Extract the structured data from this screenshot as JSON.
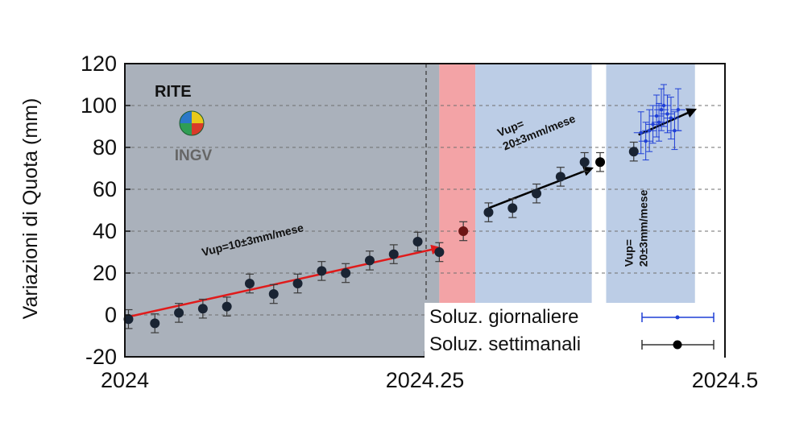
{
  "chart_data": {
    "type": "scatter",
    "ylabel": "Variazioni di Quota (mm)",
    "xlabel": "",
    "xlim": [
      2024.0,
      2024.5
    ],
    "ylim": [
      -20,
      120
    ],
    "x_ticks": [
      2024.0,
      2024.25,
      2024.5
    ],
    "x_tick_labels": [
      "2024",
      "2024.25",
      "2024.5"
    ],
    "y_ticks": [
      -20,
      0,
      20,
      40,
      60,
      80,
      100,
      120
    ],
    "y_tick_labels": [
      "-20",
      "0",
      "20",
      "40",
      "60",
      "80",
      "100",
      "120"
    ],
    "site": "RITE",
    "logo_text": "INGV",
    "shaded_periods": [
      {
        "from": 2024.0,
        "to": 2024.262,
        "color": "#aab1bb"
      },
      {
        "from": 2024.262,
        "to": 2024.292,
        "color": "#f3a3a6"
      },
      {
        "from": 2024.292,
        "to": 2024.389,
        "color": "#bccde6"
      },
      {
        "from": 2024.401,
        "to": 2024.475,
        "color": "#bccde6"
      }
    ],
    "vertical_marker_x": 2024.251,
    "series": [
      {
        "name": "Soluz. settimanali",
        "color": "#1a2433",
        "error": 4.5,
        "points": [
          {
            "x": 2024.003,
            "y": -2,
            "color": "#1a2433"
          },
          {
            "x": 2024.025,
            "y": -4,
            "color": "#1a2433"
          },
          {
            "x": 2024.045,
            "y": 1,
            "color": "#1a2433"
          },
          {
            "x": 2024.065,
            "y": 3,
            "color": "#1a2433"
          },
          {
            "x": 2024.085,
            "y": 4,
            "color": "#1a2433"
          },
          {
            "x": 2024.104,
            "y": 15,
            "color": "#1a2433"
          },
          {
            "x": 2024.124,
            "y": 10,
            "color": "#1a2433"
          },
          {
            "x": 2024.144,
            "y": 15,
            "color": "#1a2433"
          },
          {
            "x": 2024.164,
            "y": 21,
            "color": "#1a2433"
          },
          {
            "x": 2024.184,
            "y": 20,
            "color": "#1a2433"
          },
          {
            "x": 2024.204,
            "y": 26,
            "color": "#1a2433"
          },
          {
            "x": 2024.224,
            "y": 29,
            "color": "#1a2433"
          },
          {
            "x": 2024.244,
            "y": 35,
            "color": "#1a2433"
          },
          {
            "x": 2024.262,
            "y": 30,
            "color": "#1a2433"
          },
          {
            "x": 2024.282,
            "y": 40,
            "color": "#6e1515"
          },
          {
            "x": 2024.303,
            "y": 49,
            "color": "#1a2433"
          },
          {
            "x": 2024.323,
            "y": 51,
            "color": "#1a2433"
          },
          {
            "x": 2024.343,
            "y": 58,
            "color": "#1a2433"
          },
          {
            "x": 2024.363,
            "y": 66,
            "color": "#1a2433"
          },
          {
            "x": 2024.383,
            "y": 73,
            "color": "#1a2433"
          },
          {
            "x": 2024.396,
            "y": 73,
            "color": "#000000"
          },
          {
            "x": 2024.424,
            "y": 78,
            "color": "#1a2433"
          }
        ]
      },
      {
        "name": "Soluz. giornaliere",
        "color": "#1f3fd6",
        "points": [
          {
            "x": 2024.43,
            "y": 87,
            "xerr": 0.006,
            "yerr": 10
          },
          {
            "x": 2024.434,
            "y": 83,
            "xerr": 0.006,
            "yerr": 9
          },
          {
            "x": 2024.437,
            "y": 88,
            "xerr": 0.006,
            "yerr": 10
          },
          {
            "x": 2024.44,
            "y": 91,
            "xerr": 0.006,
            "yerr": 9
          },
          {
            "x": 2024.443,
            "y": 95,
            "xerr": 0.006,
            "yerr": 10
          },
          {
            "x": 2024.445,
            "y": 92,
            "xerr": 0.006,
            "yerr": 9
          },
          {
            "x": 2024.447,
            "y": 98,
            "xerr": 0.006,
            "yerr": 10
          },
          {
            "x": 2024.449,
            "y": 100,
            "xerr": 0.006,
            "yerr": 10
          },
          {
            "x": 2024.452,
            "y": 96,
            "xerr": 0.006,
            "yerr": 9
          },
          {
            "x": 2024.455,
            "y": 94,
            "xerr": 0.006,
            "yerr": 10
          },
          {
            "x": 2024.458,
            "y": 88,
            "xerr": 0.006,
            "yerr": 9
          },
          {
            "x": 2024.461,
            "y": 98,
            "xerr": 0.006,
            "yerr": 10
          }
        ]
      }
    ],
    "trend_arrows": [
      {
        "label": "Vup=10±3mm/mese",
        "from": [
          2024.002,
          -1
        ],
        "to": [
          2024.262,
          32
        ],
        "color": "#e01b1b",
        "label_at": [
          2024.065,
          28
        ],
        "rotate": -14
      },
      {
        "label": "Vup=",
        "label2": "20±3mm/mese",
        "from": [
          2024.303,
          51
        ],
        "to": [
          2024.389,
          70
        ],
        "color": "#000000",
        "label_at": [
          2024.312,
          85
        ],
        "rotate": -22
      },
      {
        "label": "Vup=",
        "label2": "20±3mm/mese",
        "from": [
          2024.428,
          86
        ],
        "to": [
          2024.475,
          98
        ],
        "color": "#000000",
        "label_at": [
          2024.423,
          23
        ],
        "rotate": -90
      }
    ],
    "legend": {
      "position": "bottom-right",
      "entries": [
        {
          "label": "Soluz. giornaliere",
          "color": "#1f3fd6"
        },
        {
          "label": "Soluz. settimanali",
          "color": "#000000"
        }
      ]
    }
  }
}
